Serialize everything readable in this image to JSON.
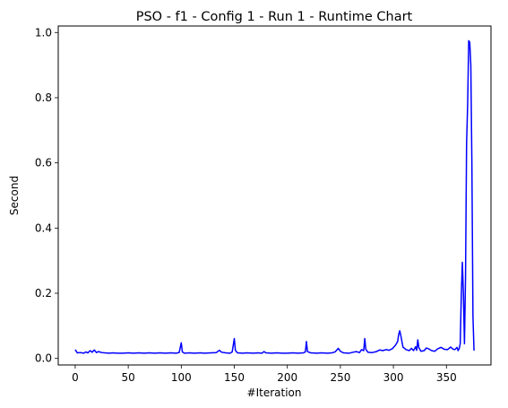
{
  "chart_data": {
    "type": "line",
    "title": "PSO - f1 - Config 1 - Run 1 - Runtime Chart",
    "xlabel": "#Iteration",
    "ylabel": "Second",
    "xlim": [
      -16,
      392
    ],
    "ylim": [
      -0.02,
      1.02
    ],
    "xticks": [
      0,
      50,
      100,
      150,
      200,
      250,
      300,
      350
    ],
    "xtick_labels": [
      "0",
      "50",
      "100",
      "150",
      "200",
      "250",
      "300",
      "350"
    ],
    "yticks": [
      0.0,
      0.2,
      0.4,
      0.6,
      0.8,
      1.0
    ],
    "ytick_labels": [
      "0.0",
      "0.2",
      "0.4",
      "0.6",
      "0.8",
      "1.0"
    ],
    "grid": false,
    "series": [
      {
        "color": "#0000ff",
        "points": [
          [
            0,
            0.027
          ],
          [
            2,
            0.017
          ],
          [
            5,
            0.018
          ],
          [
            8,
            0.016
          ],
          [
            10,
            0.02
          ],
          [
            12,
            0.017
          ],
          [
            14,
            0.024
          ],
          [
            16,
            0.019
          ],
          [
            18,
            0.026
          ],
          [
            20,
            0.018
          ],
          [
            22,
            0.021
          ],
          [
            25,
            0.018
          ],
          [
            28,
            0.017
          ],
          [
            32,
            0.016
          ],
          [
            36,
            0.017
          ],
          [
            40,
            0.016
          ],
          [
            45,
            0.016
          ],
          [
            50,
            0.017
          ],
          [
            55,
            0.016
          ],
          [
            60,
            0.017
          ],
          [
            65,
            0.016
          ],
          [
            70,
            0.017
          ],
          [
            75,
            0.016
          ],
          [
            80,
            0.017
          ],
          [
            85,
            0.016
          ],
          [
            90,
            0.017
          ],
          [
            95,
            0.016
          ],
          [
            98,
            0.018
          ],
          [
            100,
            0.048
          ],
          [
            101,
            0.02
          ],
          [
            103,
            0.016
          ],
          [
            108,
            0.017
          ],
          [
            112,
            0.016
          ],
          [
            118,
            0.017
          ],
          [
            122,
            0.016
          ],
          [
            128,
            0.017
          ],
          [
            133,
            0.018
          ],
          [
            136,
            0.025
          ],
          [
            138,
            0.019
          ],
          [
            142,
            0.017
          ],
          [
            146,
            0.016
          ],
          [
            148,
            0.02
          ],
          [
            150,
            0.061
          ],
          [
            151,
            0.025
          ],
          [
            153,
            0.017
          ],
          [
            158,
            0.016
          ],
          [
            162,
            0.017
          ],
          [
            168,
            0.016
          ],
          [
            172,
            0.017
          ],
          [
            176,
            0.016
          ],
          [
            178,
            0.021
          ],
          [
            180,
            0.017
          ],
          [
            185,
            0.016
          ],
          [
            190,
            0.017
          ],
          [
            195,
            0.016
          ],
          [
            200,
            0.016
          ],
          [
            205,
            0.017
          ],
          [
            210,
            0.016
          ],
          [
            215,
            0.017
          ],
          [
            217,
            0.02
          ],
          [
            218,
            0.052
          ],
          [
            219,
            0.021
          ],
          [
            222,
            0.017
          ],
          [
            228,
            0.016
          ],
          [
            232,
            0.017
          ],
          [
            238,
            0.016
          ],
          [
            242,
            0.017
          ],
          [
            245,
            0.02
          ],
          [
            248,
            0.031
          ],
          [
            250,
            0.022
          ],
          [
            253,
            0.017
          ],
          [
            258,
            0.016
          ],
          [
            262,
            0.019
          ],
          [
            265,
            0.021
          ],
          [
            268,
            0.018
          ],
          [
            270,
            0.027
          ],
          [
            272,
            0.024
          ],
          [
            273,
            0.061
          ],
          [
            274,
            0.028
          ],
          [
            276,
            0.019
          ],
          [
            280,
            0.018
          ],
          [
            284,
            0.021
          ],
          [
            287,
            0.026
          ],
          [
            290,
            0.024
          ],
          [
            293,
            0.027
          ],
          [
            296,
            0.025
          ],
          [
            299,
            0.03
          ],
          [
            302,
            0.041
          ],
          [
            304,
            0.052
          ],
          [
            305,
            0.074
          ],
          [
            306,
            0.085
          ],
          [
            307,
            0.07
          ],
          [
            309,
            0.035
          ],
          [
            312,
            0.027
          ],
          [
            315,
            0.024
          ],
          [
            317,
            0.031
          ],
          [
            319,
            0.024
          ],
          [
            321,
            0.036
          ],
          [
            322,
            0.025
          ],
          [
            323,
            0.057
          ],
          [
            324,
            0.033
          ],
          [
            326,
            0.022
          ],
          [
            329,
            0.024
          ],
          [
            331,
            0.032
          ],
          [
            333,
            0.03
          ],
          [
            336,
            0.024
          ],
          [
            339,
            0.022
          ],
          [
            342,
            0.03
          ],
          [
            345,
            0.034
          ],
          [
            348,
            0.028
          ],
          [
            351,
            0.027
          ],
          [
            354,
            0.035
          ],
          [
            356,
            0.029
          ],
          [
            358,
            0.027
          ],
          [
            360,
            0.034
          ],
          [
            361,
            0.024
          ],
          [
            362,
            0.03
          ],
          [
            363,
            0.045
          ],
          [
            364,
            0.19
          ],
          [
            365,
            0.295
          ],
          [
            366,
            0.2
          ],
          [
            367,
            0.045
          ],
          [
            368,
            0.25
          ],
          [
            369,
            0.66
          ],
          [
            370,
            0.78
          ],
          [
            371,
            0.975
          ],
          [
            372,
            0.97
          ],
          [
            373,
            0.9
          ],
          [
            374,
            0.6
          ],
          [
            375,
            0.13
          ],
          [
            376,
            0.024
          ]
        ]
      }
    ]
  }
}
